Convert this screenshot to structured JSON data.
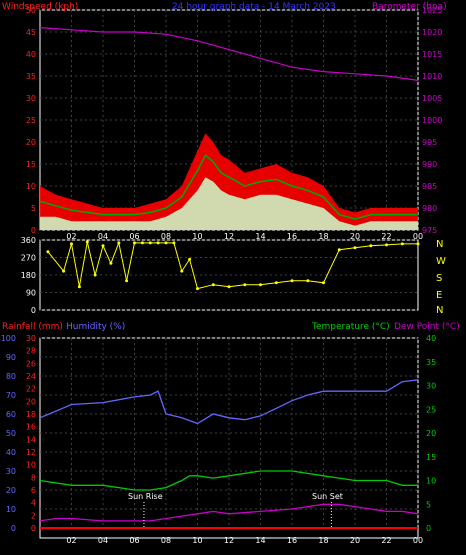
{
  "header": {
    "wind_label": "Windspeed (kph)",
    "title": "24 hour graph data - 14 March 2023",
    "baro_label": "Barometer (hpa)"
  },
  "bottom_header": {
    "rain_label": "Rainfall (mm)",
    "hum_label": "Humidity (%)",
    "temp_label": "Temperature (°C)",
    "dew_label": "Dew Point (°C)"
  },
  "compass": [
    "N",
    "W",
    "S",
    "E",
    "N"
  ],
  "annotations": {
    "sunrise": "Sun Rise",
    "sunset": "Sun Set"
  },
  "colors": {
    "wind": "#ff2020",
    "gust_fill": "#ff0000",
    "wind_avg": "#ccffcc",
    "wind_trend": "#00aa00",
    "baro": "#cc00cc",
    "dir": "#ffff00",
    "humidity": "#6666ff",
    "temperature": "#00cc00",
    "dewpoint": "#cc00cc",
    "rain": "#ff0000",
    "grid": "#404040",
    "axis": "#ffffff"
  },
  "chart_data": [
    {
      "type": "line",
      "name": "wind_and_pressure",
      "x_ticks": [
        "02",
        "04",
        "06",
        "08",
        "10",
        "12",
        "14",
        "16",
        "18",
        "20",
        "22",
        "00"
      ],
      "x_range_hours": [
        0,
        24
      ],
      "y_left": {
        "label": "Windspeed (kph)",
        "range": [
          0,
          50
        ],
        "ticks": [
          0,
          5,
          10,
          15,
          20,
          25,
          30,
          35,
          40,
          45,
          50
        ]
      },
      "y_right": {
        "label": "Barometer (hpa)",
        "range": [
          975,
          1025
        ],
        "ticks": [
          975,
          980,
          985,
          990,
          995,
          1000,
          1005,
          1010,
          1015,
          1020,
          1025
        ]
      },
      "series": [
        {
          "name": "gust",
          "x": [
            0,
            1,
            2,
            3,
            4,
            5,
            6,
            7,
            8,
            9,
            9.5,
            10,
            10.5,
            11,
            11.5,
            12,
            13,
            14,
            15,
            16,
            17,
            18,
            19,
            20,
            21,
            22,
            23,
            24
          ],
          "values": [
            10,
            8,
            7,
            6,
            5,
            5,
            5,
            6,
            7,
            10,
            14,
            18,
            22,
            20,
            17,
            16,
            13,
            14,
            15,
            13,
            12,
            10,
            5,
            4,
            5,
            5,
            5,
            5
          ]
        },
        {
          "name": "average",
          "x": [
            0,
            1,
            2,
            3,
            4,
            5,
            6,
            7,
            8,
            9,
            9.5,
            10,
            10.5,
            11,
            11.5,
            12,
            13,
            14,
            15,
            16,
            17,
            18,
            19,
            20,
            21,
            22,
            23,
            24
          ],
          "values": [
            3,
            3,
            2,
            2,
            2,
            2,
            2,
            2,
            3,
            5,
            7,
            9,
            12,
            11,
            9,
            8,
            7,
            8,
            8,
            7,
            6,
            5,
            2,
            1,
            2,
            2,
            2,
            2
          ]
        },
        {
          "name": "baro",
          "x": [
            0,
            2,
            4,
            6,
            8,
            10,
            12,
            14,
            16,
            18,
            20,
            22,
            24
          ],
          "values": [
            1021,
            1020.5,
            1020,
            1020,
            1019.5,
            1018,
            1016,
            1014,
            1012,
            1011,
            1010.5,
            1010,
            1009
          ]
        }
      ]
    },
    {
      "type": "scatter",
      "name": "wind_direction",
      "y_range": [
        0,
        360
      ],
      "y_ticks": [
        0,
        90,
        180,
        270,
        360
      ],
      "x": [
        0.5,
        1.5,
        2,
        2.5,
        3,
        3.5,
        4,
        4.5,
        5,
        5.5,
        6,
        6.5,
        7,
        7.5,
        8,
        8.5,
        9,
        9.5,
        10,
        11,
        12,
        13,
        14,
        15,
        16,
        17,
        18,
        19,
        20,
        21,
        22,
        23,
        24
      ],
      "values": [
        300,
        200,
        340,
        120,
        350,
        180,
        330,
        240,
        345,
        150,
        345,
        345,
        345,
        345,
        345,
        345,
        200,
        260,
        110,
        130,
        120,
        130,
        130,
        140,
        150,
        150,
        140,
        310,
        320,
        330,
        335,
        340,
        340
      ]
    },
    {
      "type": "line",
      "name": "temperature_humidity_rain",
      "x_ticks": [
        "02",
        "04",
        "06",
        "08",
        "10",
        "12",
        "14",
        "16",
        "18",
        "20",
        "22",
        "00"
      ],
      "x_range_hours": [
        0,
        24
      ],
      "y_left_humidity": {
        "label": "Humidity (%)",
        "range": [
          0,
          100
        ],
        "ticks": [
          0,
          10,
          20,
          30,
          40,
          50,
          60,
          70,
          80,
          90,
          100
        ]
      },
      "y_left_rain": {
        "label": "Rainfall (mm)",
        "range": [
          0,
          30
        ],
        "ticks": [
          0,
          2,
          4,
          6,
          8,
          10,
          12,
          14,
          16,
          18,
          20,
          22,
          24,
          26,
          28,
          30
        ]
      },
      "y_right": {
        "label": "Temperature (°C)",
        "range": [
          0,
          40
        ],
        "ticks": [
          0,
          5,
          10,
          15,
          20,
          25,
          30,
          35,
          40
        ]
      },
      "series": [
        {
          "name": "humidity",
          "x": [
            0,
            2,
            4,
            6,
            7,
            7.5,
            8,
            9,
            10,
            11,
            12,
            13,
            14,
            15,
            16,
            17,
            18,
            20,
            22,
            23,
            24
          ],
          "values": [
            58,
            65,
            66,
            69,
            70,
            72,
            60,
            58,
            55,
            60,
            58,
            57,
            59,
            63,
            67,
            70,
            72,
            72,
            72,
            77,
            78
          ]
        },
        {
          "name": "temperature",
          "x": [
            0,
            2,
            4,
            6,
            7,
            8,
            9,
            9.5,
            10,
            11,
            12,
            14,
            16,
            18,
            19,
            20,
            22,
            23,
            24
          ],
          "values": [
            10,
            9,
            9,
            8,
            8,
            8.5,
            10,
            11,
            11,
            10.5,
            11,
            12,
            12,
            11,
            10.5,
            10,
            10,
            9,
            9
          ]
        },
        {
          "name": "dewpoint",
          "x": [
            0,
            1,
            2,
            4,
            6,
            7,
            8,
            9,
            10,
            11,
            12,
            14,
            16,
            17,
            18,
            19,
            20,
            22,
            23,
            24
          ],
          "values": [
            1.5,
            2,
            2,
            1.5,
            1.5,
            1.5,
            2,
            2.5,
            3,
            3.5,
            3,
            3.5,
            4,
            4.5,
            5,
            5,
            4.5,
            3.5,
            3.5,
            3
          ]
        },
        {
          "name": "rain",
          "x": [
            0,
            24
          ],
          "values": [
            0,
            0
          ]
        }
      ],
      "markers": [
        {
          "label": "Sun Rise",
          "hour": 6.6
        },
        {
          "label": "Sun Set",
          "hour": 18.5
        }
      ]
    }
  ]
}
